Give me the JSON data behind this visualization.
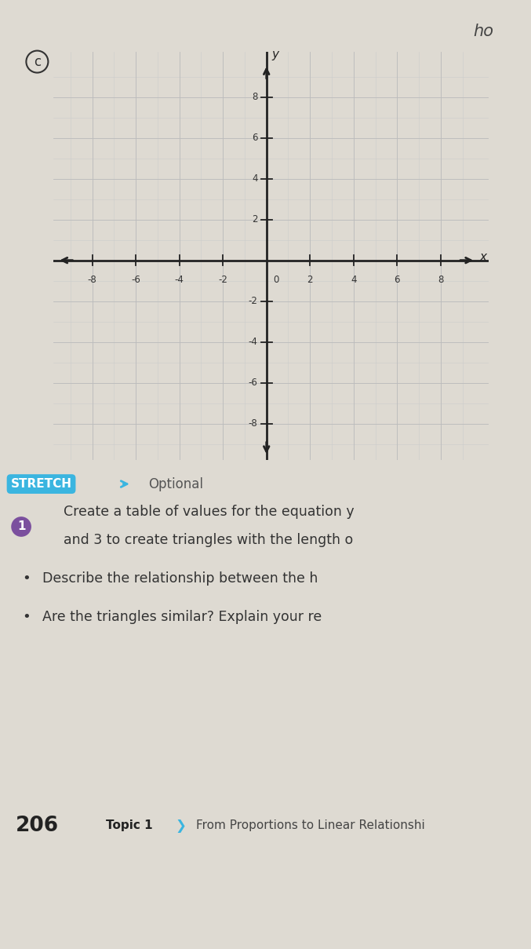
{
  "bg_color": "#dedad2",
  "grid_bg": "#ffffff",
  "grid_color": "#b0b0b0",
  "axis_color": "#222222",
  "tick_color": "#333333",
  "axis_label_x": "x",
  "axis_label_y": "y",
  "stretch_label": "STRETCH",
  "stretch_bg": "#3ab5e0",
  "stretch_text_color": "#ffffff",
  "optional_label": "Optional",
  "optional_color": "#555555",
  "num1_bg": "#7b4f9e",
  "num1_text": "1",
  "num1_text_color": "#ffffff",
  "body_text_line1": "Create a table of values for the equation y",
  "body_text_line2": "and 3 to create triangles with the length o",
  "bullet1": "Describe the relationship between the h",
  "bullet2": "Are the triangles similar? Explain your re",
  "footer_num": "206",
  "footer_text": "Topic 1",
  "footer_subtext": "From Proportions to Linear Relationshi",
  "footer_bg": "#f5f5f5",
  "footer_line_color": "#3ab5e0",
  "handwriting_top": "ho"
}
